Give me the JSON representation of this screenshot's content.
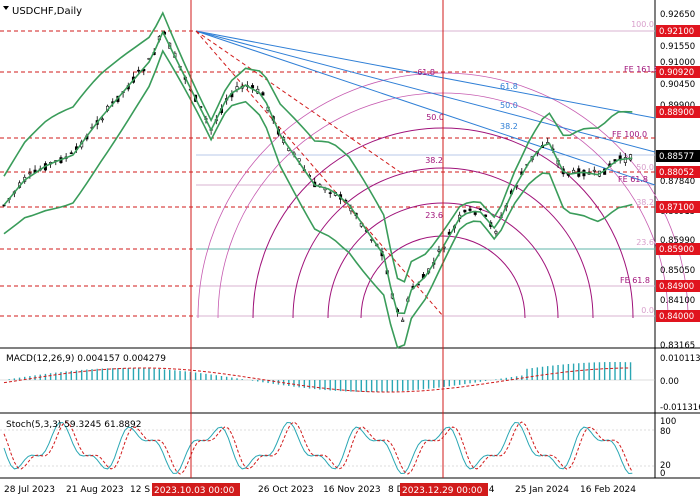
{
  "main": {
    "title": "USDCHF,Daily",
    "y_ticks": [
      "0.92650",
      "0.92100",
      "0.91550",
      "0.91000",
      "0.90450",
      "0.89900",
      "0.88805",
      "0.87840",
      "0.86915",
      "0.85990",
      "0.85050",
      "0.84100",
      "0.83165"
    ],
    "last_price": "0.88577",
    "price_tags": [
      {
        "text": "0.92100",
        "color": "#e0141e"
      },
      {
        "text": "0.90920",
        "color": "#e0141e"
      },
      {
        "text": "0.88900",
        "color": "#e0141e"
      },
      {
        "text": "0.88052",
        "color": "#e0141e"
      },
      {
        "text": "0.87100",
        "color": "#e0141e"
      },
      {
        "text": "0.85900",
        "color": "#e0141e"
      },
      {
        "text": "0.84900",
        "color": "#e0141e"
      },
      {
        "text": "0.84000",
        "color": "#e0141e"
      }
    ],
    "fib_labels": [
      "100.0",
      "61.8",
      "50.0",
      "38.2",
      "23.6",
      "0.0"
    ],
    "fan_labels": [
      "61.8",
      "50.0",
      "38.2"
    ],
    "arc_labels": [
      "61.8",
      "50.0",
      "38.2",
      "23.6"
    ],
    "fe_labels": [
      "FE 161.8",
      "FE 100.0",
      "FE 61.8",
      "FE 61.8"
    ]
  },
  "macd": {
    "label": "MACD(12,26,9) 0.004157 0.004279",
    "ticks": [
      "0.010113",
      "0.00",
      "-0.011316"
    ]
  },
  "stoch": {
    "label": "Stoch(5,3,3) 59.3245 61.8892",
    "ticks": [
      "100",
      "80",
      "20",
      "0"
    ]
  },
  "x_axis": {
    "labels": [
      "28 Jul 2023",
      "21 Aug 2023",
      "12 S",
      "26 Oct 2023",
      "16 Nov 2023",
      "8 D",
      "24",
      "25 Jan 2024",
      "16 Feb 2024"
    ],
    "highlight_labels": [
      "2023.10.03 00:00",
      "2023.12.29 00:00"
    ]
  },
  "colors": {
    "band": "#3a9c5a",
    "macd": "#2aa7b4",
    "fib": "#2f7fd6",
    "arc": "#a0137a",
    "red": "#d11b1b"
  }
}
